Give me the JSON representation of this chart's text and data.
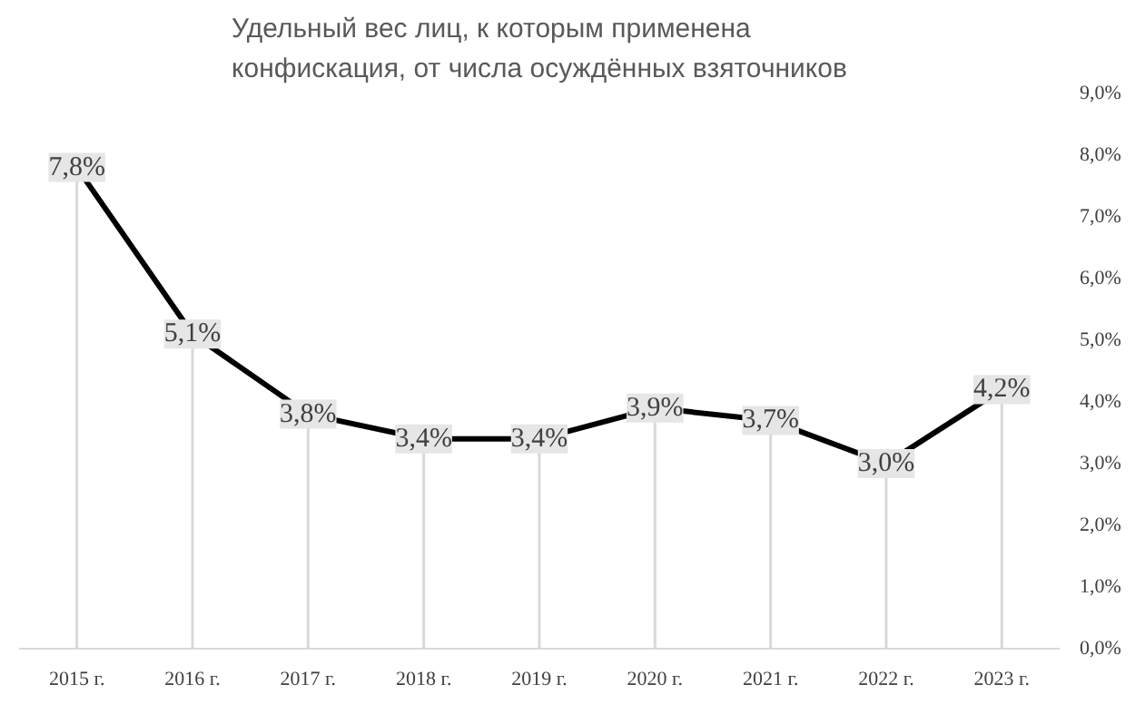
{
  "chart_data": {
    "type": "line",
    "title": "Удельный вес лиц, к которым применена конфискация, от числа осуждённых взяточников",
    "categories": [
      "2015 г.",
      "2016 г.",
      "2017 г.",
      "2018 г.",
      "2019 г.",
      "2020 г.",
      "2021 г.",
      "2022 г.",
      "2023 г."
    ],
    "series": [
      {
        "color": "#000000",
        "values": [
          7.8,
          5.1,
          3.8,
          3.4,
          3.4,
          3.9,
          3.7,
          3.0,
          4.2
        ],
        "value_labels": [
          "7,8%",
          "5,1%",
          "3,8%",
          "3,4%",
          "3,4%",
          "3,9%",
          "3,7%",
          "3,0%",
          "4,2%"
        ]
      }
    ],
    "ylim": [
      0,
      9
    ],
    "yticks": [
      {
        "value": 0,
        "label": "0,0%"
      },
      {
        "value": 1,
        "label": "1,0%"
      },
      {
        "value": 2,
        "label": "2,0%"
      },
      {
        "value": 3,
        "label": "3,0%"
      },
      {
        "value": 4,
        "label": "4,0%"
      },
      {
        "value": 5,
        "label": "5,0%"
      },
      {
        "value": 6,
        "label": "6,0%"
      },
      {
        "value": 7,
        "label": "7,0%"
      },
      {
        "value": 8,
        "label": "8,0%"
      },
      {
        "value": 9,
        "label": "9,0%"
      }
    ],
    "marker": "square",
    "line_style": "solid"
  }
}
